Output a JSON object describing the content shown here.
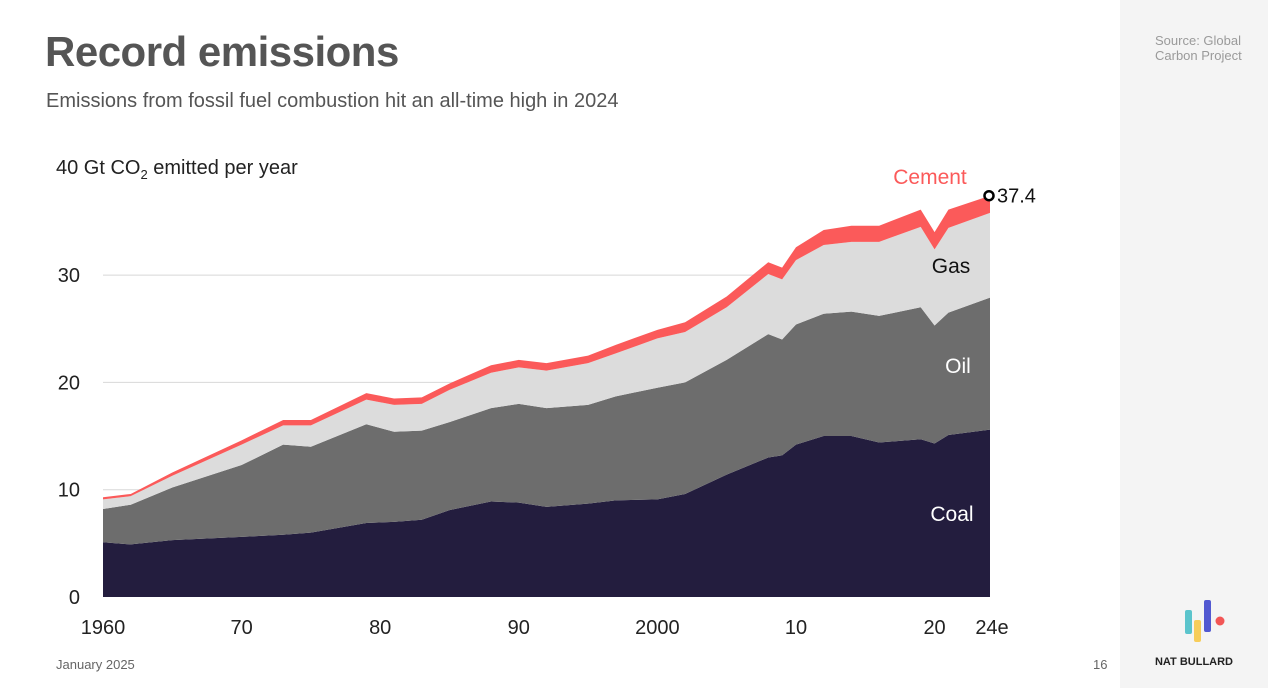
{
  "title": "Record emissions",
  "subtitle": "Emissions from fossil fuel combustion hit an all-time high in 2024",
  "footer_date": "January 2025",
  "page_number": "16",
  "source": "Source: Global Carbon Project",
  "brand": "NAT BULLARD",
  "colors": {
    "coal": "#231d3e",
    "oil": "#6d6d6d",
    "gas": "#dcdcdc",
    "cement": "#fb5a5a"
  },
  "chart_data": {
    "type": "area",
    "stacked": true,
    "title": "Record emissions",
    "ylabel_prefix": "40 Gt CO",
    "ylabel_sub": "2",
    "ylabel_suffix": " emitted per year",
    "ylim": [
      0,
      40
    ],
    "yticks": [
      "0",
      "10",
      "20",
      "30"
    ],
    "ytick_values": [
      0,
      10,
      20,
      30
    ],
    "xticks": [
      "1960",
      "70",
      "80",
      "90",
      "2000",
      "10",
      "20",
      "24e"
    ],
    "xtick_values": [
      1960,
      1970,
      1980,
      1990,
      2000,
      2010,
      2020,
      2024
    ],
    "x": [
      1960,
      1962,
      1965,
      1970,
      1973,
      1975,
      1979,
      1981,
      1983,
      1985,
      1988,
      1990,
      1992,
      1995,
      1997,
      2000,
      2002,
      2005,
      2008,
      2009,
      2010,
      2012,
      2014,
      2016,
      2019,
      2020,
      2021,
      2024
    ],
    "series": [
      {
        "name": "Coal",
        "values": [
          5.1,
          4.9,
          5.3,
          5.6,
          5.8,
          6.0,
          6.9,
          7.0,
          7.2,
          8.1,
          8.9,
          8.8,
          8.4,
          8.7,
          9.0,
          9.1,
          9.6,
          11.4,
          13.0,
          13.2,
          14.2,
          15.0,
          15.0,
          14.4,
          14.7,
          14.3,
          15.1,
          15.6
        ]
      },
      {
        "name": "Oil",
        "values": [
          3.1,
          3.7,
          4.9,
          6.7,
          8.4,
          8.0,
          9.2,
          8.4,
          8.3,
          8.2,
          8.7,
          9.2,
          9.2,
          9.2,
          9.7,
          10.4,
          10.4,
          10.7,
          11.5,
          10.8,
          11.2,
          11.4,
          11.6,
          11.8,
          12.3,
          11.0,
          11.4,
          12.3
        ]
      },
      {
        "name": "Gas",
        "values": [
          0.9,
          0.8,
          1.1,
          1.9,
          1.8,
          2.0,
          2.3,
          2.5,
          2.5,
          3.0,
          3.3,
          3.4,
          3.5,
          3.9,
          4.0,
          4.6,
          4.7,
          4.9,
          5.6,
          5.6,
          6.0,
          6.4,
          6.5,
          6.9,
          7.5,
          7.1,
          7.9,
          7.9
        ]
      },
      {
        "name": "Cement",
        "values": [
          0.2,
          0.2,
          0.3,
          0.4,
          0.5,
          0.5,
          0.6,
          0.6,
          0.6,
          0.6,
          0.7,
          0.7,
          0.7,
          0.7,
          0.8,
          0.8,
          0.9,
          1.0,
          1.1,
          1.1,
          1.2,
          1.4,
          1.5,
          1.5,
          1.6,
          1.6,
          1.7,
          1.6
        ]
      }
    ],
    "annotation": {
      "label": "37.4",
      "x": 2024,
      "y": 37.4
    },
    "grid": true
  }
}
